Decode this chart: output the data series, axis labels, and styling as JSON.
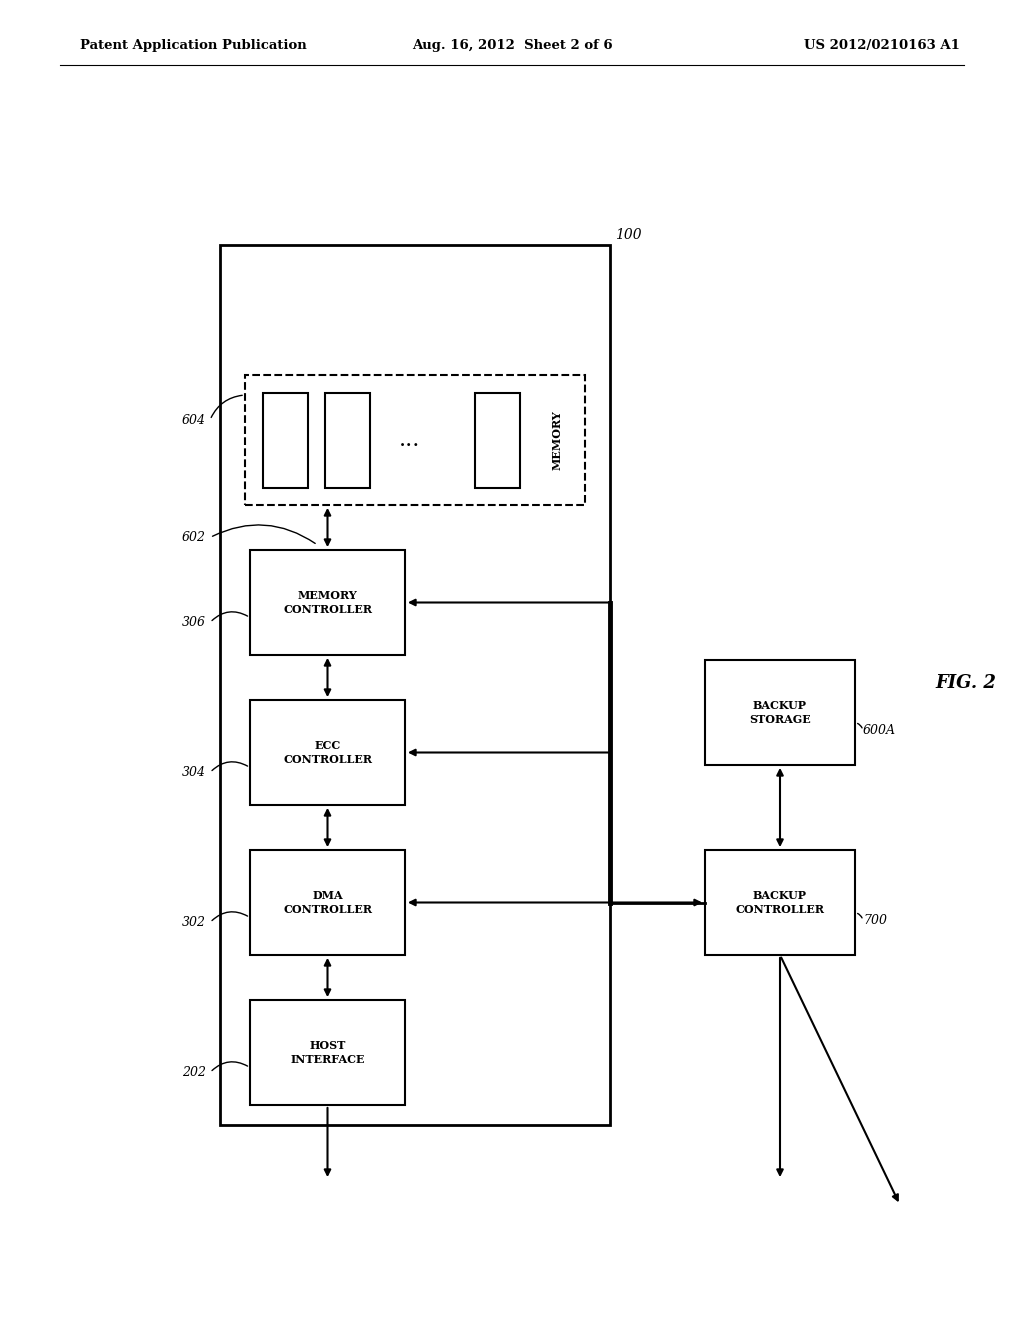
{
  "background_color": "#ffffff",
  "header_left": "Patent Application Publication",
  "header_mid": "Aug. 16, 2012  Sheet 2 of 6",
  "header_right": "US 2012/0210163 A1",
  "fig_label": "FIG. 2"
}
